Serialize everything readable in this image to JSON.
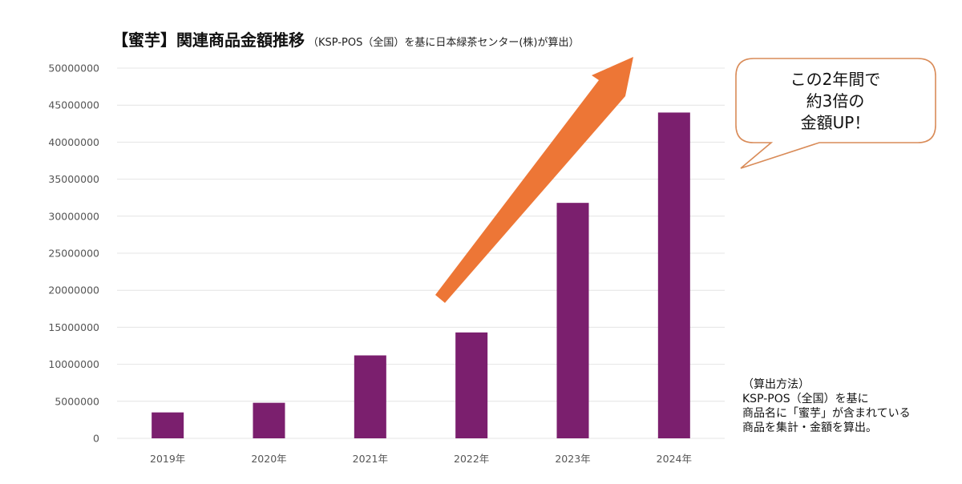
{
  "title": {
    "main": "【蜜芋】関連商品金額推移",
    "sub": "（KSP-POS（全国）を基に日本緑茶センター(株)が算出）"
  },
  "callout": {
    "lines": [
      "この2年間で",
      "約3倍の",
      "金額UP！"
    ]
  },
  "method_note": {
    "heading": "（算出方法）",
    "lines": [
      "KSP-POS（全国）を基に",
      "商品名に「蜜芋」が含まれている",
      "商品を集計・金額を算出。"
    ]
  },
  "colors": {
    "bar": "#7b1f6e",
    "arrow": "#ed7636",
    "grid": "#e4e4e4",
    "callout_border": "#d98b58"
  },
  "chart_data": {
    "type": "bar",
    "title": "【蜜芋】関連商品金額推移",
    "categories": [
      "2019年",
      "2020年",
      "2021年",
      "2022年",
      "2023年",
      "2024年"
    ],
    "values": [
      3500000,
      4800000,
      11200000,
      14300000,
      31800000,
      44000000
    ],
    "ylim": [
      0,
      50000000
    ],
    "yticks": [
      0,
      5000000,
      10000000,
      15000000,
      20000000,
      25000000,
      30000000,
      35000000,
      40000000,
      45000000,
      50000000
    ],
    "grid": true,
    "legend": "none"
  }
}
